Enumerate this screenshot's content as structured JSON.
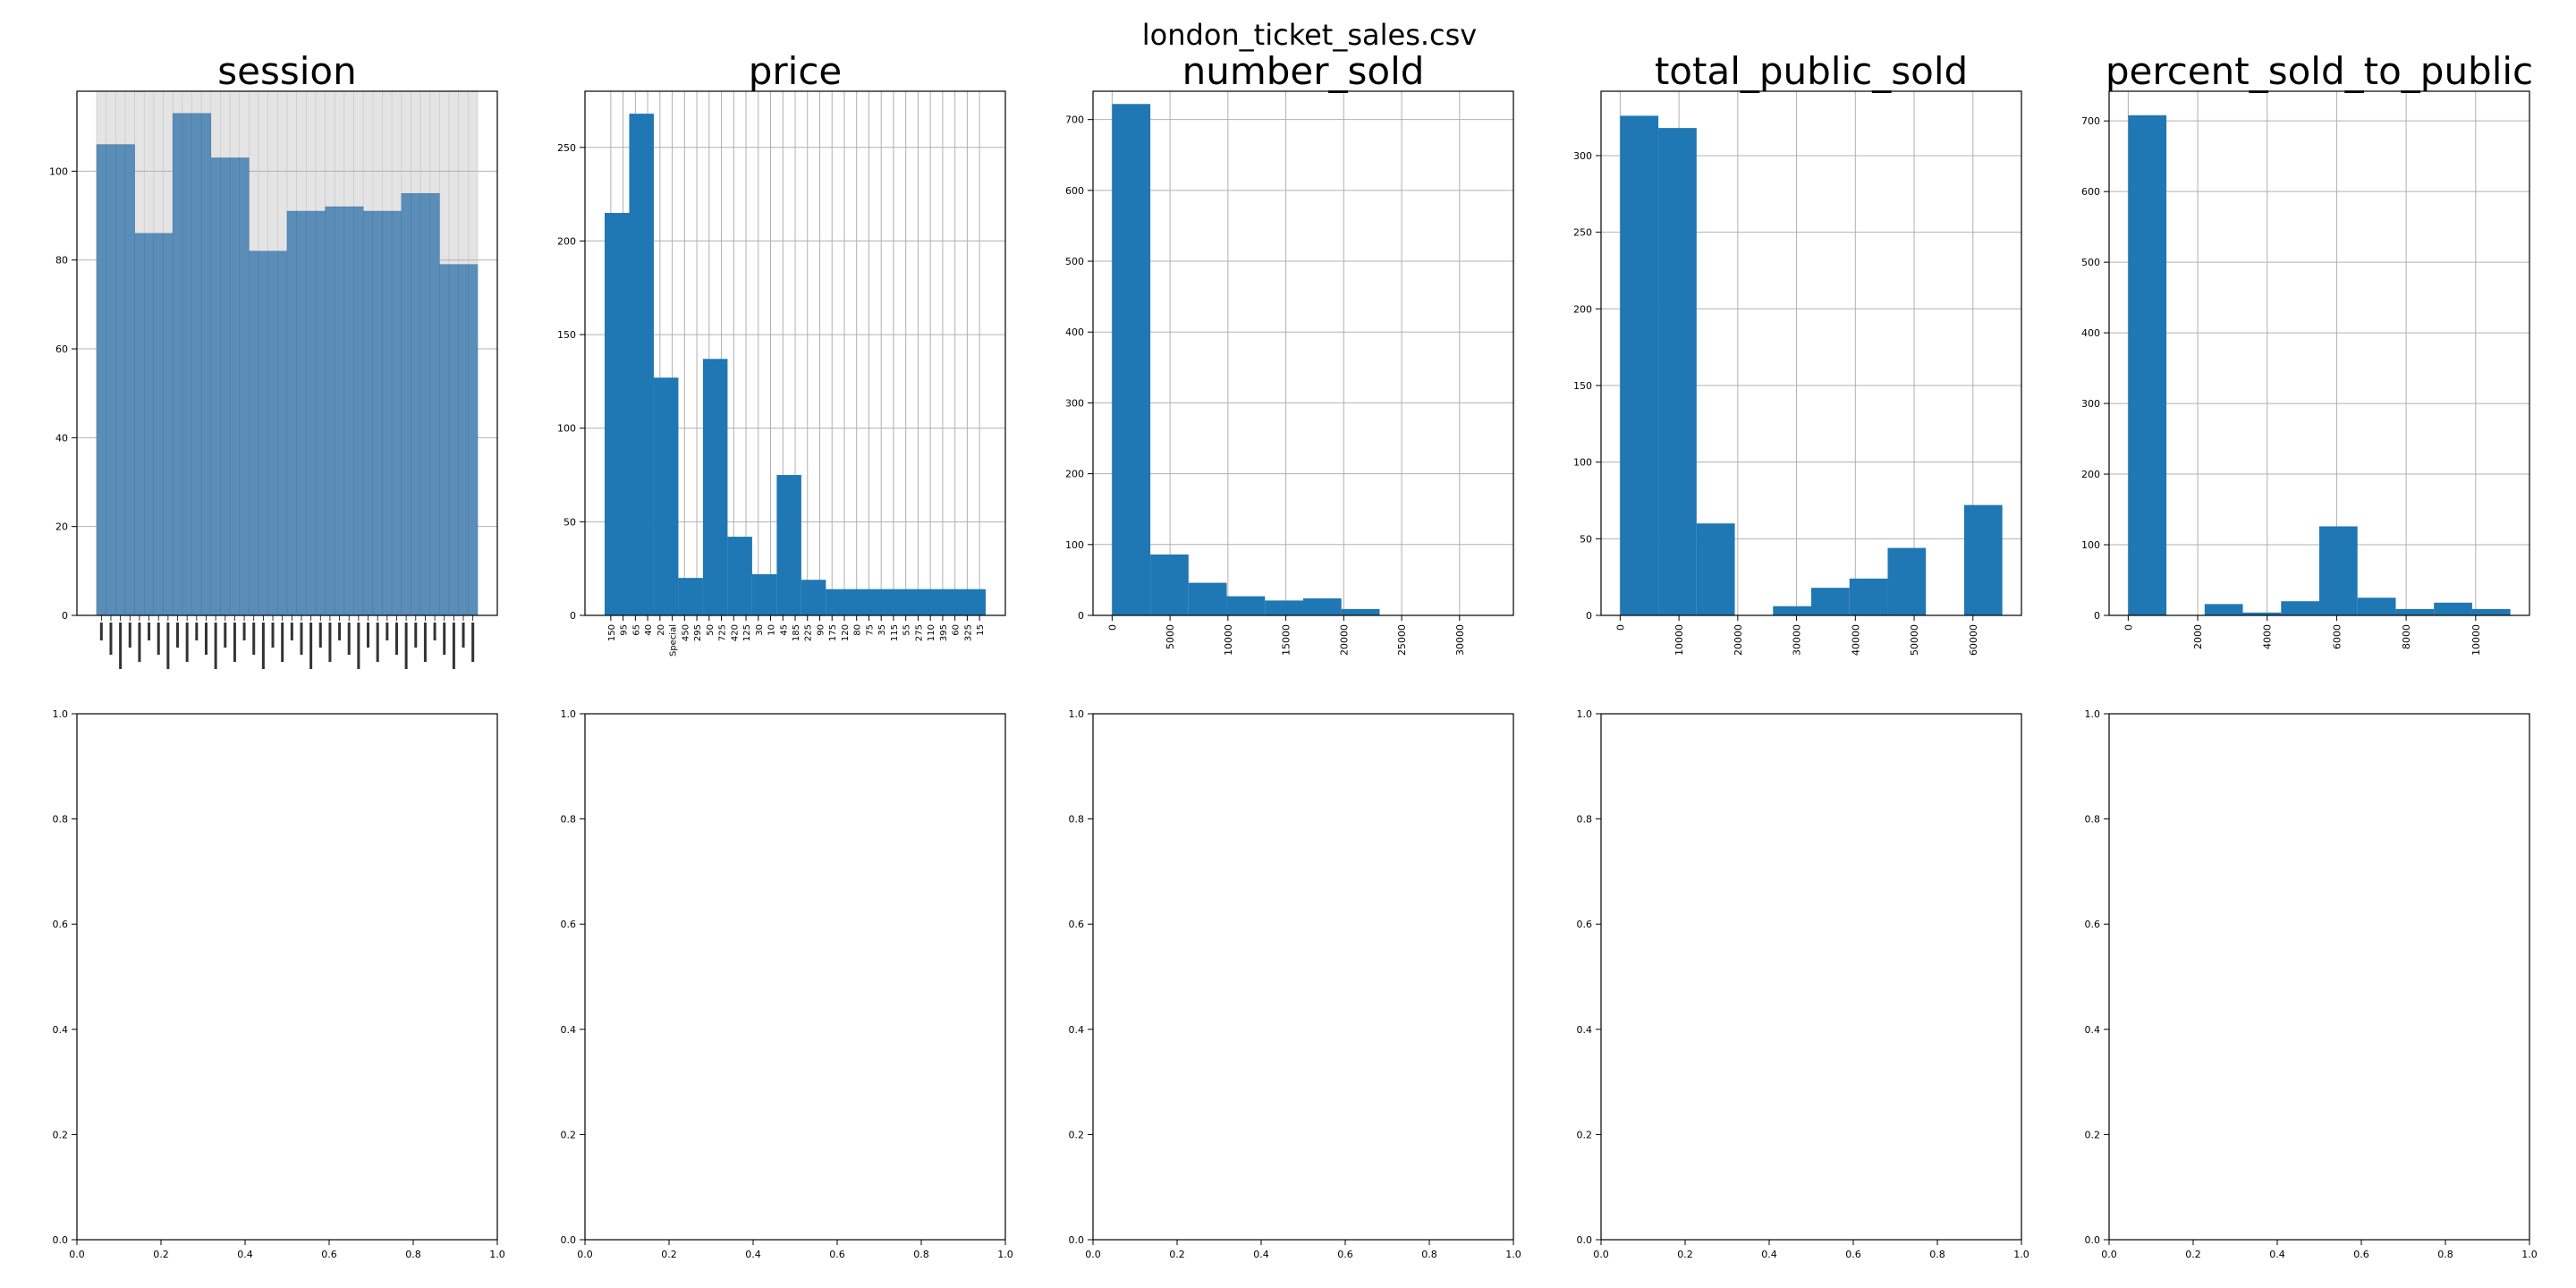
{
  "figure": {
    "title": "london_ticket_sales.csv"
  },
  "colors": {
    "bar": "#1f77b4",
    "session_bar": "#5a8db8",
    "grid": "#b0b0b0",
    "axis": "#000000"
  },
  "chart_data": [
    {
      "type": "bar",
      "title": "session",
      "categories": [
        "",
        "",
        "",
        "",
        "",
        "",
        "",
        "",
        ""
      ],
      "category_groups": [
        {
          "count": 4,
          "value": 106
        },
        {
          "count": 4,
          "value": 86
        },
        {
          "count": 4,
          "value": 113
        },
        {
          "count": 4,
          "value": 103
        },
        {
          "count": 4,
          "value": 82
        },
        {
          "count": 4,
          "value": 91
        },
        {
          "count": 4,
          "value": 92
        },
        {
          "count": 4,
          "value": 91
        },
        {
          "count": 4,
          "value": 95
        },
        {
          "count": 4,
          "value": 79
        }
      ],
      "ylim": [
        0,
        118
      ],
      "yticks": [
        0,
        20,
        40,
        60,
        80,
        100
      ],
      "grid": true
    },
    {
      "type": "bar",
      "title": "price",
      "categories": [
        "150",
        "95",
        "65",
        "40",
        "20",
        "Special",
        "450",
        "295",
        "50",
        "725",
        "420",
        "125",
        "30",
        "10",
        "45",
        "185",
        "225",
        "90",
        "175",
        "120",
        "80",
        "75",
        "35",
        "115",
        "55",
        "275",
        "110",
        "395",
        "60",
        "325",
        "15"
      ],
      "group_values": [
        {
          "count": 2,
          "value": 215
        },
        {
          "count": 2,
          "value": 268
        },
        {
          "count": 2,
          "value": 127
        },
        {
          "count": 2,
          "value": 20
        },
        {
          "count": 2,
          "value": 137
        },
        {
          "count": 2,
          "value": 42
        },
        {
          "count": 2,
          "value": 22
        },
        {
          "count": 2,
          "value": 75
        },
        {
          "count": 2,
          "value": 19
        },
        {
          "count": 2,
          "value": 14
        }
      ],
      "extra_category_note": "",
      "ylim": [
        0,
        280
      ],
      "yticks": [
        0,
        50,
        100,
        150,
        200,
        250
      ],
      "grid": true
    },
    {
      "type": "histogram",
      "title": "number_sold",
      "bin_edges": [
        0,
        3300,
        6600,
        9900,
        13200,
        16500,
        19800,
        23100,
        26400,
        29700,
        33000
      ],
      "values": [
        722,
        86,
        46,
        27,
        21,
        24,
        9,
        0,
        0,
        0
      ],
      "xlim": [
        -1650,
        34650
      ],
      "xticks": [
        0,
        5000,
        10000,
        15000,
        20000,
        25000,
        30000
      ],
      "ylim": [
        0,
        740
      ],
      "yticks": [
        0,
        100,
        200,
        300,
        400,
        500,
        600,
        700
      ],
      "grid": true
    },
    {
      "type": "histogram",
      "title": "total_public_sold",
      "bin_edges": [
        0,
        6500,
        13000,
        19500,
        26000,
        32500,
        39000,
        45500,
        52000,
        58500,
        65000
      ],
      "values": [
        326,
        318,
        60,
        0,
        6,
        18,
        24,
        44,
        0,
        72
      ],
      "xlim": [
        -3250,
        68250
      ],
      "xticks": [
        0,
        10000,
        20000,
        30000,
        40000,
        50000,
        60000
      ],
      "ylim": [
        0,
        342
      ],
      "yticks": [
        0,
        50,
        100,
        150,
        200,
        250,
        300
      ],
      "grid": true
    },
    {
      "type": "histogram",
      "title": "percent_sold_to_public",
      "bin_edges": [
        0,
        1100,
        2200,
        3300,
        4400,
        5500,
        6600,
        7700,
        8800,
        9900,
        11000
      ],
      "values": [
        708,
        0,
        16,
        4,
        20,
        126,
        25,
        9,
        18,
        9
      ],
      "xlim": [
        -550,
        11550
      ],
      "xticks": [
        0,
        2000,
        4000,
        6000,
        8000,
        10000
      ],
      "ylim": [
        0,
        742
      ],
      "yticks": [
        0,
        100,
        200,
        300,
        400,
        500,
        600,
        700
      ],
      "grid": true
    }
  ],
  "empty_axes": {
    "ticks": [
      "0.0",
      "0.2",
      "0.4",
      "0.6",
      "0.8",
      "1.0"
    ]
  }
}
